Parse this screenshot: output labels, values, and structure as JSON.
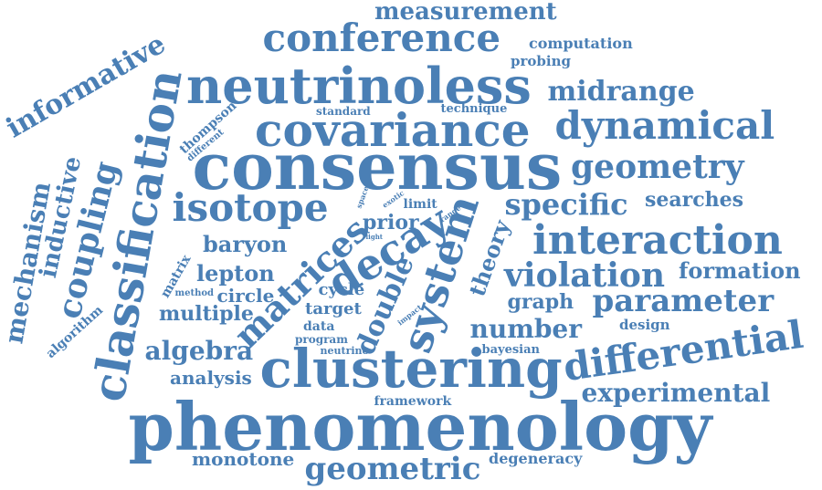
{
  "color": "#4a7fb5",
  "words": [
    "phenomenology",
    "consensus",
    "clustering",
    "covariance",
    "neutrinoless",
    "differential",
    "classification",
    "conference",
    "interaction",
    "dynamical",
    "isotope",
    "system",
    "geometry",
    "decay",
    "violation",
    "matrices",
    "parameter",
    "specific",
    "midrange",
    "coupling",
    "informative",
    "geometric",
    "experimental",
    "algebra",
    "number",
    "measurement",
    "mechanism",
    "formation",
    "double",
    "inductive",
    "theory",
    "baryon",
    "searches",
    "lepton",
    "multiple",
    "analysis",
    "prior",
    "graph",
    "circle",
    "monotone",
    "cycle",
    "target",
    "algorithm",
    "computation",
    "probing",
    "degeneracy",
    "framework",
    "design",
    "thompson",
    "technique",
    "standard",
    "limit",
    "data",
    "bayesian",
    "program",
    "matrix",
    "neutrino",
    "method",
    "different",
    "exotic",
    "range",
    "impact",
    "space",
    "light"
  ]
}
